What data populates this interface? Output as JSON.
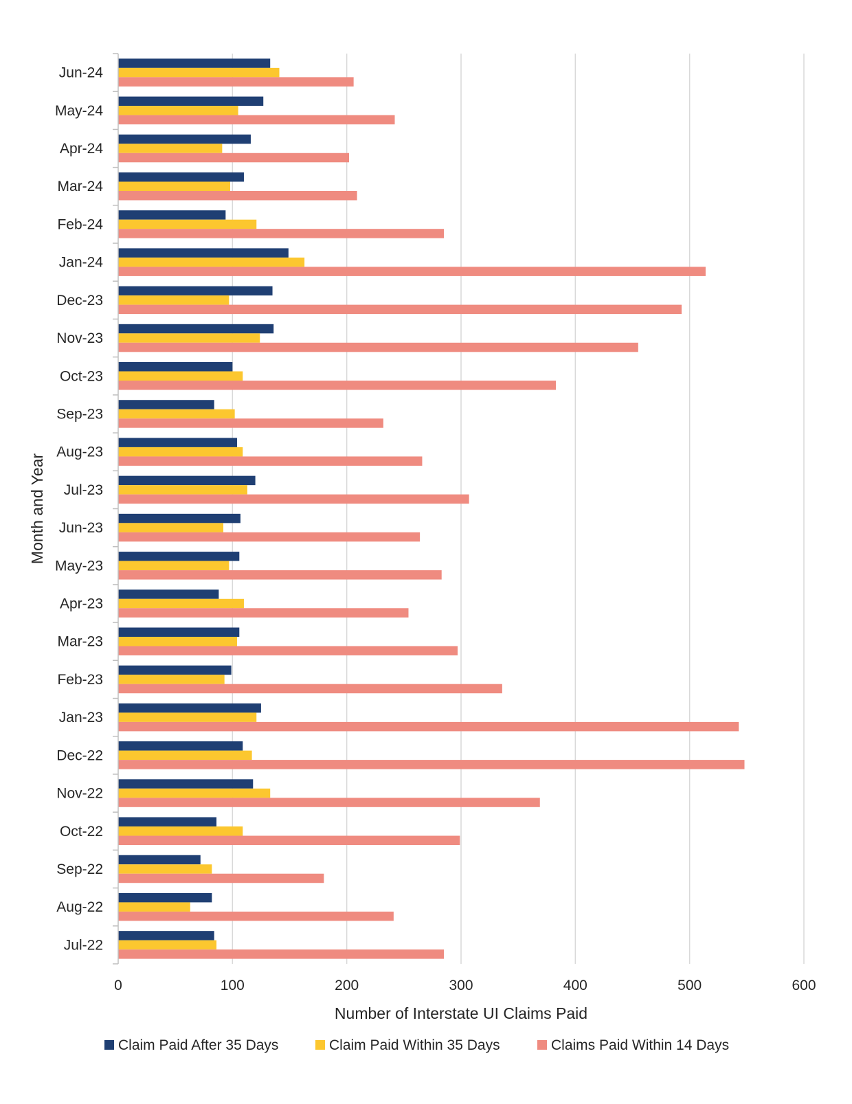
{
  "chart_data": {
    "type": "bar",
    "orientation": "horizontal",
    "categories": [
      "Jun-24",
      "May-24",
      "Apr-24",
      "Mar-24",
      "Feb-24",
      "Jan-24",
      "Dec-23",
      "Nov-23",
      "Oct-23",
      "Sep-23",
      "Aug-23",
      "Jul-23",
      "Jun-23",
      "May-23",
      "Apr-23",
      "Mar-23",
      "Feb-23",
      "Jan-23",
      "Dec-22",
      "Nov-22",
      "Oct-22",
      "Sep-22",
      "Aug-22",
      "Jul-22"
    ],
    "series": [
      {
        "name": "Claim Paid After 35 Days",
        "color": "#1f3f73",
        "values": [
          133,
          127,
          116,
          110,
          94,
          149,
          135,
          136,
          100,
          84,
          104,
          120,
          107,
          106,
          88,
          106,
          99,
          125,
          109,
          118,
          86,
          72,
          82,
          84
        ]
      },
      {
        "name": "Claim Paid Within 35 Days",
        "color": "#fcc72f",
        "values": [
          141,
          105,
          91,
          98,
          121,
          163,
          97,
          124,
          109,
          102,
          109,
          113,
          92,
          97,
          110,
          104,
          93,
          121,
          117,
          133,
          109,
          82,
          63,
          86
        ]
      },
      {
        "name": "Claims Paid Within 14 Days",
        "color": "#ef8b80",
        "values": [
          206,
          242,
          202,
          209,
          285,
          514,
          493,
          455,
          383,
          232,
          266,
          307,
          264,
          283,
          254,
          297,
          336,
          543,
          548,
          369,
          299,
          180,
          241,
          285
        ]
      }
    ],
    "title": "",
    "xlabel": "Number of Interstate UI Claims Paid",
    "ylabel": "Month and Year",
    "xlim": [
      0,
      600
    ],
    "xticks": [
      "0",
      "100",
      "200",
      "300",
      "400",
      "500",
      "600"
    ],
    "grid": "vertical",
    "legend": "bottom"
  }
}
